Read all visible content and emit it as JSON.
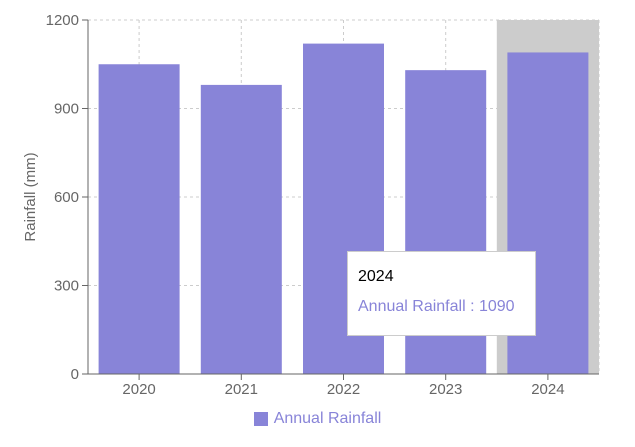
{
  "chart_data": {
    "type": "bar",
    "categories": [
      "2020",
      "2021",
      "2022",
      "2023",
      "2024"
    ],
    "series": [
      {
        "name": "Annual Rainfall",
        "values": [
          1050,
          980,
          1120,
          1030,
          1090
        ]
      }
    ],
    "xlabel": "",
    "ylabel": "Rainfall (mm)",
    "ylim": [
      0,
      1200
    ],
    "yticks": [
      0,
      300,
      600,
      900,
      1200
    ],
    "grid": true,
    "legend_position": "bottom-center",
    "active_category": "2024"
  },
  "colors": {
    "bar": "#8884d8",
    "grid": "#cccccc",
    "axis": "#666666",
    "highlight": "#cccccc"
  },
  "tooltip": {
    "label": "2024",
    "item": "Annual Rainfall : 1090"
  },
  "legend": {
    "label": "Annual Rainfall"
  }
}
